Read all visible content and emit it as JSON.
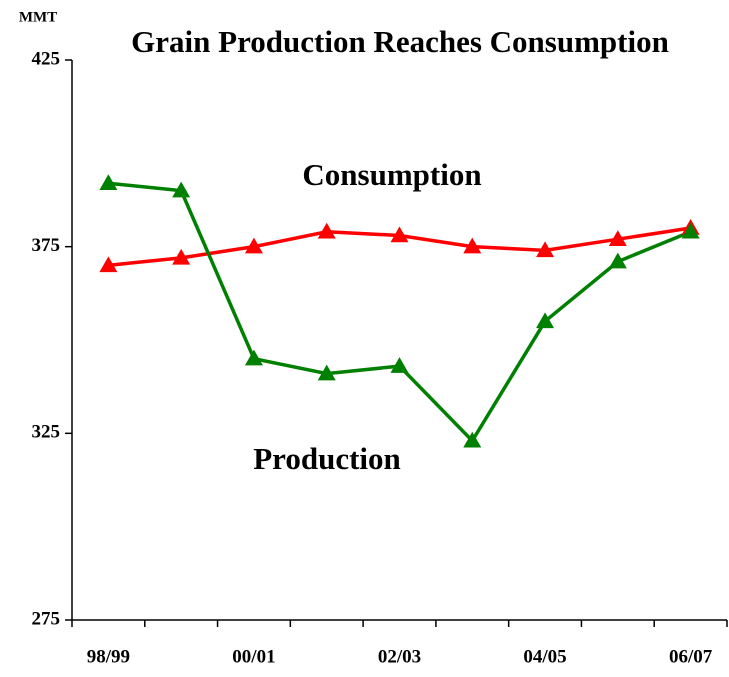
{
  "chart_data": {
    "type": "line",
    "title": "Grain Production Reaches Consumption",
    "y_label": "MMT",
    "categories": [
      "98/99",
      null,
      "00/01",
      null,
      "02/03",
      null,
      "04/05",
      null,
      "06/07"
    ],
    "series": [
      {
        "name": "Consumption",
        "color": "#ff0000",
        "values": [
          370,
          372,
          375,
          379,
          378,
          375,
          374,
          377,
          380
        ]
      },
      {
        "name": "Production",
        "color": "#008000",
        "values": [
          392,
          390,
          345,
          341,
          343,
          323,
          355,
          371,
          379
        ]
      }
    ],
    "ylim": [
      275,
      425
    ],
    "yticks": [
      275,
      325,
      375,
      425
    ],
    "grid": false
  }
}
